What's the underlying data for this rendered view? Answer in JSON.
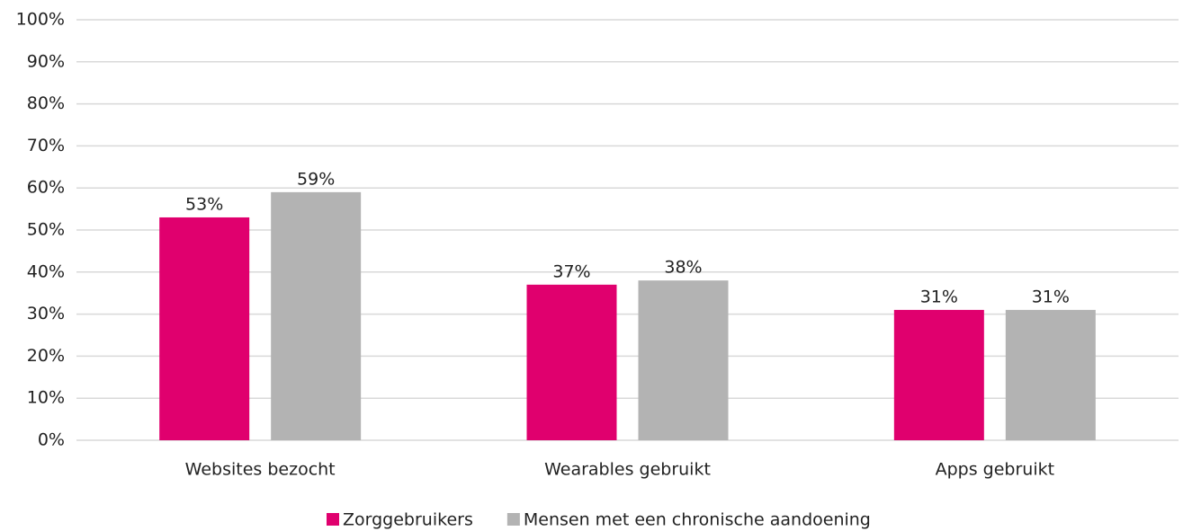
{
  "chart_data": {
    "type": "bar",
    "categories": [
      "Websites bezocht",
      "Wearables gebruikt",
      "Apps gebruikt"
    ],
    "series": [
      {
        "name": "Zorggebruikers",
        "color": "#e0006e",
        "values": [
          53,
          37,
          31
        ],
        "value_labels": [
          "53%",
          "37%",
          "31%"
        ]
      },
      {
        "name": "Mensen met een chronische aandoening",
        "color": "#b3b3b3",
        "values": [
          59,
          38,
          31
        ],
        "value_labels": [
          "59%",
          "38%",
          "31%"
        ]
      }
    ],
    "ylim": [
      0,
      100
    ],
    "yticks": [
      {
        "value": 0,
        "label": "0%"
      },
      {
        "value": 10,
        "label": "10%"
      },
      {
        "value": 20,
        "label": "20%"
      },
      {
        "value": 30,
        "label": "30%"
      },
      {
        "value": 40,
        "label": "40%"
      },
      {
        "value": 50,
        "label": "50%"
      },
      {
        "value": 60,
        "label": "60%"
      },
      {
        "value": 70,
        "label": "70%"
      },
      {
        "value": 80,
        "label": "80%"
      },
      {
        "value": 90,
        "label": "90%"
      },
      {
        "value": 100,
        "label": "100%"
      }
    ],
    "grid": true,
    "legend": "bottom"
  }
}
